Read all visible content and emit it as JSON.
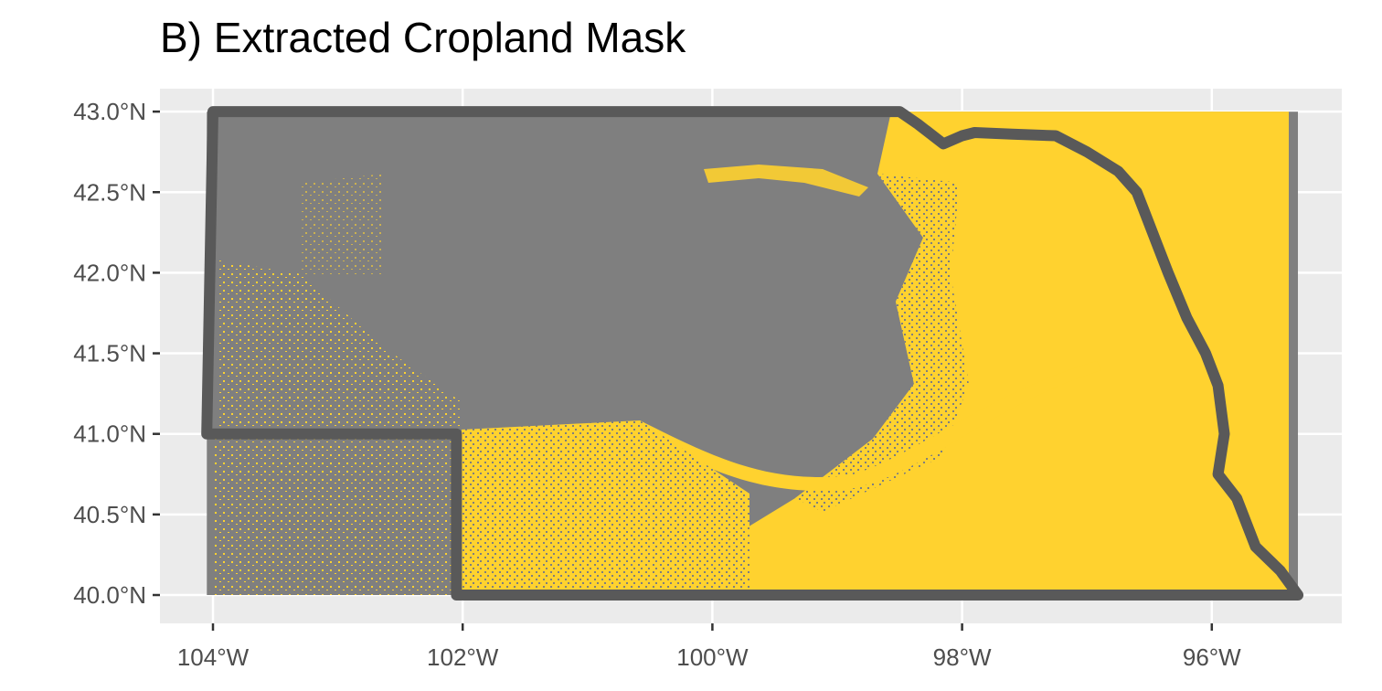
{
  "title": "B) Extracted Cropland Mask",
  "axes": {
    "x_ticks": [
      {
        "label": "104°W",
        "lon": -104
      },
      {
        "label": "102°W",
        "lon": -102
      },
      {
        "label": "100°W",
        "lon": -100
      },
      {
        "label": "98°W",
        "lon": -98
      },
      {
        "label": "96°W",
        "lon": -96
      }
    ],
    "y_ticks": [
      {
        "label": "43.0°N",
        "lat": 43.0
      },
      {
        "label": "42.5°N",
        "lat": 42.5
      },
      {
        "label": "42.0°N",
        "lat": 42.0
      },
      {
        "label": "41.5°N",
        "lat": 41.5
      },
      {
        "label": "41.0°N",
        "lat": 41.0
      },
      {
        "label": "40.5°N",
        "lat": 40.5
      },
      {
        "label": "40.0°N",
        "lat": 40.0
      }
    ]
  },
  "colors": {
    "panel_bg": "#ebebeb",
    "grid": "#ffffff",
    "non_cropland": "#7f7f7f",
    "cropland": "#ffd22f",
    "state_border": "#595959",
    "tick_text": "#4d4d4d",
    "tick_mark": "#333333"
  },
  "map_data": {
    "state": "Nebraska",
    "extent": {
      "lon_min": -104.05,
      "lon_max": -95.31,
      "lat_min": 40.0,
      "lat_max": 43.0
    },
    "border_lonlat": [
      [
        -103.95,
        43.0
      ],
      [
        -98.5,
        43.0
      ],
      [
        -98.35,
        42.92
      ],
      [
        -98.15,
        42.8
      ],
      [
        -98.0,
        42.85
      ],
      [
        -97.9,
        42.87
      ],
      [
        -97.6,
        42.86
      ],
      [
        -97.25,
        42.85
      ],
      [
        -97.0,
        42.75
      ],
      [
        -96.75,
        42.63
      ],
      [
        -96.6,
        42.5
      ],
      [
        -96.55,
        42.4
      ],
      [
        -96.45,
        42.2
      ],
      [
        -96.35,
        42.0
      ],
      [
        -96.2,
        41.72
      ],
      [
        -96.05,
        41.5
      ],
      [
        -95.95,
        41.3
      ],
      [
        -95.9,
        41.0
      ],
      [
        -95.95,
        40.75
      ],
      [
        -95.8,
        40.6
      ],
      [
        -95.65,
        40.3
      ],
      [
        -95.45,
        40.15
      ],
      [
        -95.31,
        40.0
      ],
      [
        -102.05,
        40.0
      ],
      [
        -102.05,
        41.0
      ],
      [
        -104.05,
        41.0
      ],
      [
        -104.0,
        43.0
      ]
    ],
    "cropland_fraction_by_region": "high in east, moderate along Platte valley and southwest, low in Sandhills"
  }
}
